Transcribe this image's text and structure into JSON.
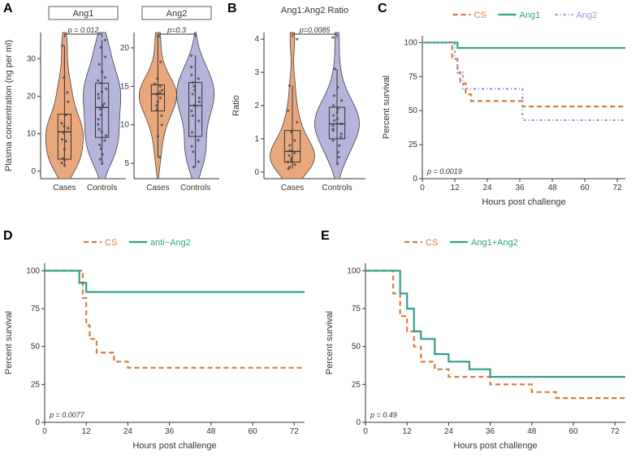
{
  "colors": {
    "cases_fill": "#e8a87c",
    "controls_fill": "#b5b4db",
    "cs_line": "#d97b3c",
    "ang1_line": "#2fa08c",
    "ang2_line": "#9a97d1",
    "point": "#404040",
    "axis": "#333333",
    "bg": "#ffffff"
  },
  "panelA": {
    "label": "A",
    "y_axis_title": "Plasma concentration (ng per ml)",
    "sub_left": {
      "title": "Ang1",
      "pvalue_text": "p = 0.012",
      "x_labels": [
        "Cases",
        "Controls"
      ],
      "y_ticks": [
        0,
        10,
        20,
        30
      ],
      "ylim": [
        -2,
        37
      ],
      "cases_points": [
        1.5,
        2.2,
        3.0,
        3.4,
        5.8,
        8.0,
        8.5,
        10.2,
        11.5,
        12.0,
        12.8,
        15.0,
        18.5,
        21.0,
        25.0,
        33.5
      ],
      "controls_points": [
        2.0,
        3.2,
        4.5,
        6.0,
        7.0,
        8.2,
        9.5,
        10.5,
        11.2,
        12.5,
        13.8,
        15.0,
        16.5,
        17.5,
        18.0,
        19.5,
        20.5,
        21.2,
        22.0,
        23.5,
        24.2,
        25.0,
        26.5,
        28.5,
        30.5,
        33.0,
        35.0
      ],
      "box_cases": {
        "q1": 3.2,
        "med": 10.5,
        "q3": 15.2,
        "wlo": 1.5,
        "whi": 33.5
      },
      "box_controls": {
        "q1": 9.0,
        "med": 17.0,
        "q3": 23.5,
        "wlo": 2.0,
        "whi": 35.0
      }
    },
    "sub_right": {
      "title": "Ang2",
      "pvalue_text": "p=0.3",
      "x_labels": [
        "Cases",
        "Controls"
      ],
      "y_ticks": [
        5,
        10,
        15,
        20
      ],
      "ylim": [
        3,
        22
      ],
      "cases_points": [
        5.8,
        8.5,
        10.0,
        11.2,
        12.0,
        12.5,
        13.0,
        13.5,
        14.0,
        14.2,
        14.5,
        15.0,
        15.3,
        16.0,
        18.2,
        21.5
      ],
      "controls_points": [
        4.5,
        5.2,
        6.5,
        7.2,
        8.0,
        9.0,
        10.5,
        11.2,
        11.8,
        12.5,
        13.0,
        13.5,
        14.0,
        14.5,
        15.0,
        15.5,
        16.0,
        16.5,
        17.5,
        19.0
      ],
      "box_cases": {
        "q1": 11.8,
        "med": 14.0,
        "q3": 15.2,
        "wlo": 5.8,
        "whi": 21.5
      },
      "box_controls": {
        "q1": 8.5,
        "med": 12.5,
        "q3": 15.5,
        "wlo": 4.5,
        "whi": 19.0
      }
    }
  },
  "panelB": {
    "label": "B",
    "title": "Ang1:Ang2 Ratio",
    "y_axis_title": "Ratio",
    "pvalue_text": "p=0.0085",
    "x_labels": [
      "Cases",
      "Controls"
    ],
    "y_ticks": [
      0,
      1,
      2,
      3,
      4
    ],
    "ylim": [
      -0.2,
      4.2
    ],
    "cases_points": [
      0.1,
      0.15,
      0.22,
      0.3,
      0.35,
      0.42,
      0.5,
      0.58,
      0.65,
      0.8,
      0.95,
      1.2,
      1.5,
      1.85,
      2.6,
      4.0
    ],
    "controls_points": [
      0.25,
      0.45,
      0.6,
      0.8,
      0.95,
      1.05,
      1.15,
      1.25,
      1.3,
      1.4,
      1.45,
      1.55,
      1.6,
      1.7,
      1.8,
      1.9,
      2.0,
      2.15,
      2.3,
      2.55,
      3.1,
      4.05
    ],
    "box_cases": {
      "q1": 0.3,
      "med": 0.62,
      "q3": 1.25,
      "wlo": 0.1,
      "whi": 2.6
    },
    "box_controls": {
      "q1": 1.0,
      "med": 1.45,
      "q3": 1.95,
      "wlo": 0.25,
      "whi": 3.1
    }
  },
  "survival_common": {
    "x_axis_title": "Hours post challenge",
    "y_axis_title": "Percent survival",
    "x_ticks": [
      0,
      12,
      24,
      36,
      48,
      60,
      72
    ],
    "y_ticks": [
      0,
      25,
      50,
      75,
      100
    ],
    "xlim": [
      0,
      75
    ],
    "ylim": [
      0,
      105
    ]
  },
  "panelC": {
    "label": "C",
    "legend": [
      {
        "label": "CS",
        "color": "#d97b3c",
        "dash": "6,4"
      },
      {
        "label": "Ang1",
        "color": "#2fa08c",
        "dash": ""
      },
      {
        "label": "Ang2",
        "color": "#9a97d1",
        "dash": "3,3,1,3"
      }
    ],
    "pvalue_text": "p = 0.0019",
    "series": {
      "CS": [
        [
          0,
          100
        ],
        [
          10,
          100
        ],
        [
          11,
          88
        ],
        [
          13,
          78
        ],
        [
          14,
          70
        ],
        [
          16,
          62
        ],
        [
          18,
          57
        ],
        [
          36,
          57
        ],
        [
          37,
          53
        ],
        [
          75,
          53
        ]
      ],
      "Ang1": [
        [
          0,
          100
        ],
        [
          12,
          100
        ],
        [
          13,
          96
        ],
        [
          75,
          96
        ]
      ],
      "Ang2": [
        [
          0,
          100
        ],
        [
          11,
          100
        ],
        [
          12,
          88
        ],
        [
          13,
          78
        ],
        [
          15,
          66
        ],
        [
          36,
          66
        ],
        [
          37,
          43
        ],
        [
          75,
          43
        ]
      ]
    }
  },
  "panelD": {
    "label": "D",
    "legend": [
      {
        "label": "CS",
        "color": "#d97b3c",
        "dash": "6,4"
      },
      {
        "label": "anti−Ang2",
        "color": "#2fa08c",
        "dash": ""
      }
    ],
    "pvalue_text": "p = 0.0077",
    "series": {
      "CS": [
        [
          0,
          100
        ],
        [
          10,
          100
        ],
        [
          11,
          82
        ],
        [
          12,
          64
        ],
        [
          13,
          55
        ],
        [
          15,
          46
        ],
        [
          20,
          40
        ],
        [
          24,
          36
        ],
        [
          75,
          36
        ]
      ],
      "anti-Ang2": [
        [
          0,
          100
        ],
        [
          9,
          100
        ],
        [
          10,
          92
        ],
        [
          12,
          86
        ],
        [
          75,
          86
        ]
      ]
    }
  },
  "panelE": {
    "label": "E",
    "legend": [
      {
        "label": "CS",
        "color": "#d97b3c",
        "dash": "6,4"
      },
      {
        "label": "Ang1+Ang2",
        "color": "#2fa08c",
        "dash": ""
      }
    ],
    "pvalue_text": "p = 0.49",
    "series": {
      "CS": [
        [
          0,
          100
        ],
        [
          6,
          100
        ],
        [
          8,
          85
        ],
        [
          10,
          70
        ],
        [
          12,
          60
        ],
        [
          14,
          50
        ],
        [
          16,
          40
        ],
        [
          20,
          35
        ],
        [
          24,
          30
        ],
        [
          36,
          25
        ],
        [
          48,
          20
        ],
        [
          55,
          16
        ],
        [
          75,
          16
        ]
      ],
      "Ang1Ang2": [
        [
          0,
          100
        ],
        [
          8,
          100
        ],
        [
          10,
          85
        ],
        [
          12,
          75
        ],
        [
          14,
          60
        ],
        [
          16,
          55
        ],
        [
          20,
          45
        ],
        [
          24,
          40
        ],
        [
          30,
          35
        ],
        [
          36,
          30
        ],
        [
          75,
          30
        ]
      ]
    }
  }
}
